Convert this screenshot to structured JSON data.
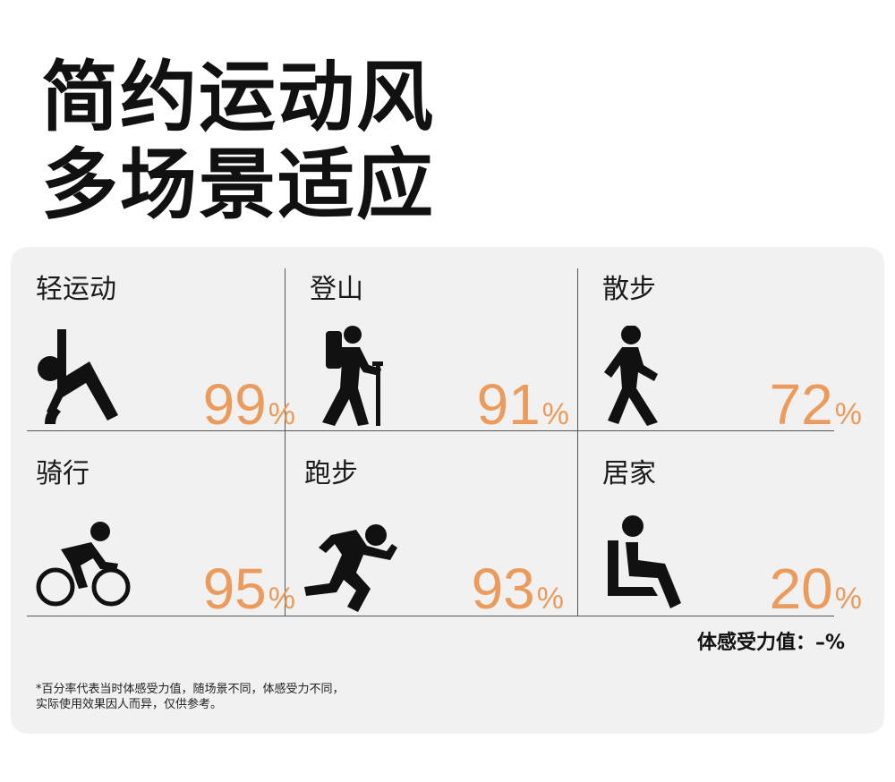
{
  "headline": {
    "line1": "简约运动风",
    "line2": "多场景适应"
  },
  "cells": [
    {
      "label": "轻运动",
      "value": "99",
      "unit": "%",
      "icon": "stretch-icon"
    },
    {
      "label": "登山",
      "value": "91",
      "unit": "%",
      "icon": "hiker-icon"
    },
    {
      "label": "散步",
      "value": "72",
      "unit": "%",
      "icon": "walker-icon"
    },
    {
      "label": "骑行",
      "value": "95",
      "unit": "%",
      "icon": "cyclist-icon"
    },
    {
      "label": "跑步",
      "value": "93",
      "unit": "%",
      "icon": "runner-icon"
    },
    {
      "label": "居家",
      "value": "20",
      "unit": "%",
      "icon": "seated-person-icon"
    }
  ],
  "legend": "体感受力值：–%",
  "footnote": {
    "line1": "*百分率代表当时体感受力值，随场景不同，体感受力不同，",
    "line2": "实际使用效果因人而异，仅供参考。"
  },
  "colors": {
    "accent": "#eb9b5c",
    "panel": "#f1f1f1",
    "text": "#111111"
  }
}
